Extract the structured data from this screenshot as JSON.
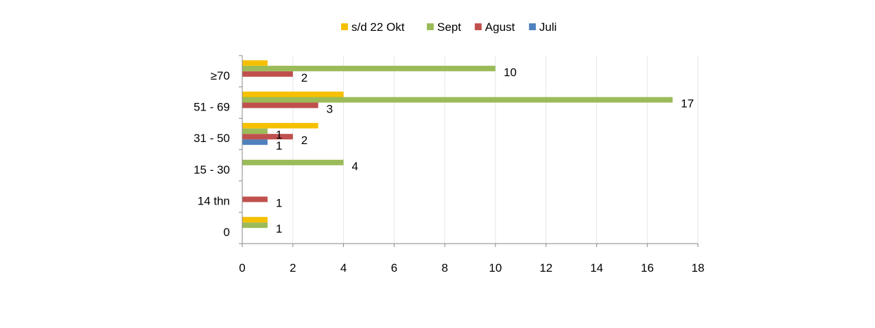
{
  "chart_data": {
    "type": "bar",
    "orientation": "horizontal",
    "categories": [
      "0",
      "14 thn",
      "15 - 30",
      "31 - 50",
      "51 - 69",
      "≥70"
    ],
    "series": [
      {
        "name": "Juli",
        "color": "#4F81BD",
        "values": [
          0,
          0,
          0,
          1,
          0,
          0
        ]
      },
      {
        "name": "Agust",
        "color": "#C0504D",
        "values": [
          0,
          1,
          0,
          2,
          3,
          2
        ]
      },
      {
        "name": "Sept",
        "color": "#9BBB59",
        "values": [
          1,
          0,
          4,
          1,
          17,
          10
        ]
      },
      {
        "name": "s/d 22 Okt",
        "color": "#F5C000",
        "values": [
          1,
          0,
          0,
          3,
          4,
          1
        ]
      }
    ],
    "data_labels": [
      {
        "series": "Agust",
        "category": "≥70",
        "text": "2"
      },
      {
        "series": "Sept",
        "category": "≥70",
        "text": "10"
      },
      {
        "series": "Agust",
        "category": "51 - 69",
        "text": "3"
      },
      {
        "series": "Sept",
        "category": "51 - 69",
        "text": "17"
      },
      {
        "series": "Juli",
        "category": "31 - 50",
        "text": "1"
      },
      {
        "series": "Agust",
        "category": "31 - 50",
        "text": "2"
      },
      {
        "series": "Sept",
        "category": "31 - 50",
        "text": "1"
      },
      {
        "series": "Sept",
        "category": "15 - 30",
        "text": "4"
      },
      {
        "series": "Agust",
        "category": "14 thn",
        "text": "1"
      },
      {
        "series": "Sept",
        "category": "0",
        "text": "1"
      }
    ],
    "legend_order": [
      "s/d 22 Okt",
      "Sept",
      "Agust",
      "Juli"
    ],
    "legend_position": "top",
    "xlim": [
      0,
      18
    ],
    "xticks": [
      0,
      2,
      4,
      6,
      8,
      10,
      12,
      14,
      16,
      18
    ],
    "grid": "vertical",
    "grid_color": "#E6E6E6",
    "axis_color": "#868686"
  }
}
